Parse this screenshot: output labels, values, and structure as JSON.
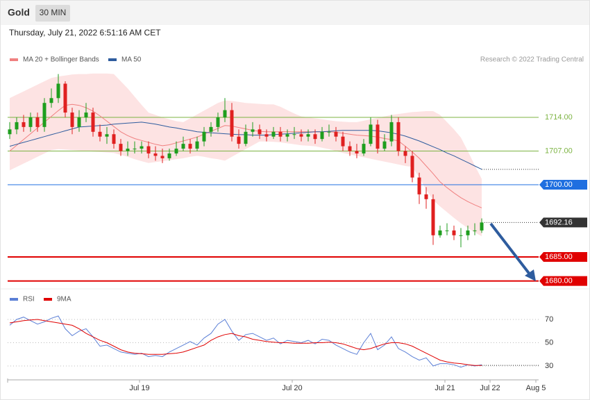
{
  "chart_data": [
    {
      "type": "candlestick",
      "title": "Gold",
      "timeframe": "30 MIN",
      "subtitle": "Thursday, July 21, 2022 6:51:16 AM CET",
      "source": "Research © 2022 Trading Central",
      "xlim": [
        -0.3,
        76.2
      ],
      "ylim": [
        1679,
        1724
      ],
      "up_color": "#1e9e1e",
      "down_color": "#e02020",
      "band_color": "#fde3e3",
      "ohlc": {
        "open": [
          1710.5,
          1711.5,
          1713,
          1712,
          1714,
          1712,
          1717,
          1718,
          1721,
          1715,
          1712,
          1714,
          1715,
          1711,
          1710,
          1710.5,
          1708.5,
          1707,
          1707.5,
          1707.5,
          1708,
          1706.5,
          1706,
          1705.5,
          1706.5,
          1707.5,
          1708.5,
          1707.5,
          1709,
          1711,
          1712,
          1714,
          1715.5,
          1710,
          1708.5,
          1711,
          1711.5,
          1710.5,
          1710,
          1711,
          1710,
          1710.5,
          1710.5,
          1710,
          1710.5,
          1709.5,
          1711,
          1711,
          1710,
          1708,
          1707,
          1706.5,
          1708.5,
          1712.5,
          1707.5,
          1709,
          1713,
          1707,
          1706,
          1701.5,
          1698,
          1697,
          1689.5,
          1690.5,
          1690.5,
          1689.5,
          1689.5,
          1690.5,
          1690.5
        ],
        "high": [
          1713,
          1714,
          1714.5,
          1715,
          1715,
          1718,
          1720,
          1723,
          1721.5,
          1716,
          1715.5,
          1717,
          1716,
          1712.5,
          1712,
          1711.5,
          1709.5,
          1709,
          1709,
          1709,
          1709,
          1708,
          1707.5,
          1707.5,
          1709,
          1710,
          1709.5,
          1710,
          1712,
          1713,
          1715,
          1718,
          1717,
          1711.5,
          1712.5,
          1713,
          1712.5,
          1711.5,
          1712,
          1712,
          1711.5,
          1712,
          1711.5,
          1711.5,
          1711.5,
          1712,
          1712.5,
          1712,
          1711,
          1709,
          1708.5,
          1709.5,
          1714,
          1713.5,
          1710.5,
          1714.5,
          1714,
          1708,
          1707,
          1702.5,
          1699.5,
          1698,
          1691.5,
          1692,
          1691.5,
          1691,
          1691.5,
          1692,
          1693
        ],
        "low": [
          1709.5,
          1710.5,
          1711,
          1711,
          1711,
          1711,
          1716,
          1717,
          1714,
          1710.5,
          1711,
          1713,
          1710,
          1709,
          1708.5,
          1707.5,
          1706,
          1706,
          1706.5,
          1706.5,
          1705.5,
          1705,
          1704.5,
          1705,
          1706,
          1707,
          1706.5,
          1707,
          1708,
          1710,
          1711,
          1713,
          1709,
          1707.5,
          1708,
          1710,
          1709.5,
          1709,
          1709.5,
          1709,
          1709,
          1709.5,
          1709,
          1709,
          1708.5,
          1709,
          1710,
          1709,
          1707,
          1706,
          1705.5,
          1706,
          1708,
          1706.5,
          1707,
          1708,
          1706,
          1704.5,
          1700.5,
          1696,
          1695,
          1687.5,
          1689,
          1689.5,
          1688.5,
          1687,
          1688.5,
          1689.5,
          1690
        ],
        "close": [
          1711.5,
          1713,
          1712,
          1714,
          1712,
          1717,
          1718,
          1721,
          1715,
          1712,
          1714,
          1715,
          1711,
          1710,
          1710.5,
          1708.5,
          1707,
          1707.5,
          1707.5,
          1708,
          1706.5,
          1706,
          1705.5,
          1706.5,
          1707.5,
          1708.5,
          1707.5,
          1709,
          1711,
          1712,
          1714,
          1715.5,
          1710,
          1708.5,
          1711,
          1711.5,
          1710.5,
          1710,
          1711,
          1710,
          1710.5,
          1710.5,
          1710,
          1710.5,
          1709.5,
          1711,
          1711,
          1710,
          1708,
          1707,
          1706.5,
          1708.5,
          1712.5,
          1707.5,
          1709,
          1713,
          1707,
          1706,
          1701.5,
          1698,
          1697,
          1689.5,
          1690.5,
          1690.5,
          1689.5,
          1689.5,
          1690.5,
          1690.5,
          1692.16
        ]
      },
      "series": [
        {
          "name": "MA 20 + Bollinger Bands",
          "color": "#f08080",
          "values": [
            1707,
            1708.2,
            1709.4,
            1710.6,
            1711.8,
            1713,
            1714.2,
            1715.4,
            1716.5,
            1716.7,
            1716.5,
            1716,
            1715.3,
            1714.3,
            1713.2,
            1712.1,
            1711,
            1710.2,
            1709.6,
            1709.2,
            1708.8,
            1708.4,
            1708.1,
            1708.3,
            1708.7,
            1709.1,
            1709.5,
            1709.9,
            1710.5,
            1711.1,
            1711.7,
            1712.3,
            1712.2,
            1711.9,
            1711.6,
            1711.3,
            1711.1,
            1711,
            1711,
            1711,
            1711,
            1711,
            1711,
            1711,
            1711,
            1711,
            1711,
            1710.9,
            1710.7,
            1710.5,
            1710.3,
            1710.2,
            1710.1,
            1709.9,
            1709.6,
            1709.4,
            1709.1,
            1708,
            1706.8,
            1705.5,
            1703.9,
            1702.3,
            1700.6,
            1699.4,
            1698.3,
            1697.3,
            1696.5,
            1695.8,
            1695.2
          ]
        },
        {
          "name": "MA 50",
          "color": "#2e5c9e",
          "values": [
            1708,
            1708.4,
            1708.8,
            1709.2,
            1709.6,
            1710,
            1710.4,
            1710.8,
            1711.2,
            1711.6,
            1712,
            1712.1,
            1712.2,
            1712.3,
            1712.4,
            1712.6,
            1712.7,
            1712.8,
            1712.9,
            1713,
            1712.8,
            1712.6,
            1712.3,
            1712,
            1711.8,
            1711.5,
            1711.3,
            1711,
            1710.9,
            1710.8,
            1710.7,
            1710.6,
            1710.5,
            1710.4,
            1710.4,
            1710.3,
            1710.3,
            1710.3,
            1710.4,
            1710.5,
            1710.6,
            1710.7,
            1710.8,
            1710.9,
            1711,
            1711,
            1711.1,
            1711.2,
            1711.3,
            1711.3,
            1711.3,
            1711.3,
            1711.3,
            1711.2,
            1711,
            1710.8,
            1710.5,
            1710.1,
            1709.6,
            1709.1,
            1708.5,
            1707.9,
            1707.3,
            1706.6,
            1706,
            1705.3,
            1704.6,
            1703.9,
            1703.2
          ]
        }
      ],
      "bollinger_upper": [
        1718,
        1718.7,
        1719.4,
        1720.1,
        1720.8,
        1721.5,
        1722.2,
        1722.5,
        1722.7,
        1722.9,
        1723,
        1723,
        1723.1,
        1723.1,
        1723.1,
        1723,
        1721.5,
        1720,
        1718.3,
        1716.6,
        1715,
        1714.5,
        1714,
        1713.6,
        1713.2,
        1713,
        1713.8,
        1714.6,
        1715.4,
        1716.2,
        1717,
        1717.5,
        1717.4,
        1717.2,
        1717,
        1716.9,
        1716.8,
        1716.7,
        1716.7,
        1716.2,
        1715.5,
        1714.8,
        1714.2,
        1714,
        1713.8,
        1713.6,
        1713.4,
        1713.2,
        1713.1,
        1713,
        1713,
        1713.3,
        1713.6,
        1713.9,
        1714.2,
        1714.5,
        1714.7,
        1714.9,
        1715.1,
        1715.2,
        1715.3,
        1715.3,
        1714.5,
        1713,
        1711.5,
        1709.8,
        1707,
        1704,
        1701.2
      ],
      "bollinger_lower": [
        1703,
        1703.7,
        1704.4,
        1705.1,
        1705.8,
        1706.5,
        1707.2,
        1707.4,
        1707.3,
        1707.2,
        1707.1,
        1707,
        1706.9,
        1706.8,
        1706.7,
        1706.6,
        1706.2,
        1705.8,
        1705.3,
        1704.9,
        1704.5,
        1704.7,
        1704.9,
        1705.1,
        1705.3,
        1705.5,
        1705.8,
        1706,
        1705.8,
        1705.5,
        1705.3,
        1705,
        1705.8,
        1706.6,
        1707.4,
        1708.2,
        1709,
        1709,
        1708.9,
        1708.8,
        1708.6,
        1708.4,
        1708.2,
        1708.1,
        1708,
        1707.7,
        1707.4,
        1707,
        1706.6,
        1706.3,
        1706,
        1705.7,
        1705.4,
        1705.1,
        1704.8,
        1704.5,
        1704.2,
        1703.9,
        1703.7,
        1701.5,
        1699,
        1696.8,
        1695.5,
        1694.3,
        1693.1,
        1692,
        1691,
        1690.1,
        1689.3
      ],
      "levels": [
        {
          "value": 1714,
          "label": "1714.00",
          "color": "#7cb342",
          "label_style": "text",
          "line_style": "solid",
          "line_width": 1
        },
        {
          "value": 1707,
          "label": "1707.00",
          "color": "#7cb342",
          "label_style": "text",
          "line_style": "solid",
          "line_width": 1
        },
        {
          "value": 1700,
          "label": "1700.00",
          "color": "#1f6fe0",
          "label_style": "box",
          "line_style": "solid",
          "line_width": 1
        },
        {
          "value": 1692.16,
          "label": "1692.16",
          "color": "#333333",
          "label_style": "box",
          "line_style": "dotted",
          "line_width": 1
        },
        {
          "value": 1685,
          "label": "1685.00",
          "color": "#e00000",
          "label_style": "box",
          "line_style": "solid",
          "line_width": 2
        },
        {
          "value": 1680,
          "label": "1680.00",
          "color": "#e00000",
          "label_style": "box",
          "line_style": "solid",
          "line_width": 2
        }
      ]
    },
    {
      "type": "line",
      "xlim": [
        -0.3,
        76.2
      ],
      "ylim": [
        20,
        80
      ],
      "yticks": [
        30,
        50,
        70
      ],
      "xticks": [
        {
          "value": 18.7,
          "label": "Jul 19"
        },
        {
          "value": 40.7,
          "label": "Jul 20"
        },
        {
          "value": 62.7,
          "label": "Jul 21"
        },
        {
          "value": 69.2,
          "label": "Jul 22"
        },
        {
          "value": 75.8,
          "label": "Aug 5"
        }
      ],
      "series": [
        {
          "name": "RSI",
          "color": "#5b7fd6",
          "values": [
            65,
            70,
            72,
            69,
            66,
            68,
            71,
            73,
            62,
            56,
            60,
            62,
            55,
            47,
            48,
            45,
            42,
            41,
            40,
            41,
            38,
            39,
            38,
            42,
            45,
            48,
            51,
            48,
            54,
            58,
            66,
            70,
            60,
            52,
            57,
            58,
            55,
            52,
            54,
            49,
            52,
            51,
            50,
            52,
            49,
            53,
            52,
            48,
            45,
            42,
            40,
            50,
            58,
            44,
            48,
            55,
            45,
            42,
            38,
            35,
            37,
            30,
            32,
            32,
            31,
            29,
            31,
            30,
            31
          ]
        },
        {
          "name": "9MA",
          "color": "#e00000",
          "values": [
            67,
            68,
            69,
            69.5,
            70,
            69,
            68,
            67,
            66,
            65,
            62,
            58,
            55,
            52,
            50,
            47,
            44,
            42,
            41,
            40.5,
            40,
            40,
            40,
            40.5,
            41,
            42,
            44,
            46,
            48,
            52,
            55,
            57,
            58,
            56,
            55,
            53,
            52,
            51,
            50.5,
            50,
            50,
            49.5,
            49.5,
            49.5,
            50,
            50,
            50.5,
            50,
            49,
            47,
            45,
            44,
            45,
            47,
            49,
            50,
            50,
            49,
            47,
            44,
            41,
            38,
            35,
            33.5,
            32.5,
            32,
            31,
            30.5,
            30.5
          ]
        }
      ]
    }
  ]
}
